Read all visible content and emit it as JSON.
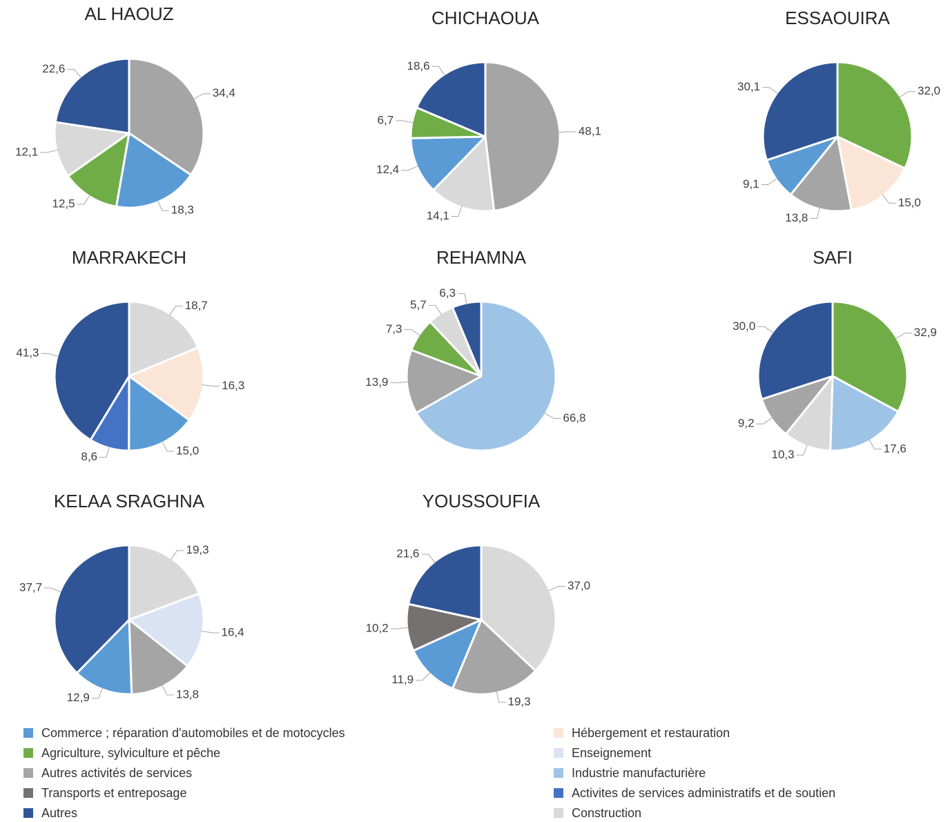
{
  "colors": {
    "Commerce ; réparation d'automobiles et de motocycles": "#5b9bd5",
    "Agriculture, sylviculture et pêche": "#70ad47",
    "Autres activités de services": "#a5a5a5",
    "Transports et entreposage": "#767171",
    "Autres": "#2f5597",
    "Hébergement et restauration": "#fbe5d6",
    "Enseignement": "#dae3f3",
    "Industrie manufacturière": "#9dc3e6",
    "Activites de services administratifs et de soutien": "#4472c4",
    "Construction": "#d9d9d9"
  },
  "legend": {
    "left": [
      "Commerce ; réparation d'automobiles et de motocycles",
      "Agriculture, sylviculture et pêche",
      "Autres activités de services",
      "Transports et entreposage",
      "Autres"
    ],
    "right": [
      "Hébergement et restauration",
      "Enseignement",
      "Industrie manufacturière",
      "Activites de services administratifs et de soutien",
      "Construction"
    ]
  },
  "chart_data": [
    {
      "type": "pie",
      "title": "AL HAOUZ",
      "slices": [
        {
          "category": "Autres activités de services",
          "value": 34.4,
          "label": "34,4"
        },
        {
          "category": "Commerce ; réparation d'automobiles et de motocycles",
          "value": 18.3,
          "label": "18,3"
        },
        {
          "category": "Agriculture, sylviculture et pêche",
          "value": 12.5,
          "label": "12,5"
        },
        {
          "category": "Construction",
          "value": 12.1,
          "label": "12,1"
        },
        {
          "category": "Autres",
          "value": 22.6,
          "label": "22,6"
        }
      ]
    },
    {
      "type": "pie",
      "title": "CHICHAOUA",
      "slices": [
        {
          "category": "Autres activités de services",
          "value": 48.1,
          "label": "48,1"
        },
        {
          "category": "Construction",
          "value": 14.1,
          "label": "14,1"
        },
        {
          "category": "Commerce ; réparation d'automobiles et de motocycles",
          "value": 12.4,
          "label": "12,4"
        },
        {
          "category": "Agriculture, sylviculture et pêche",
          "value": 6.7,
          "label": "6,7"
        },
        {
          "category": "Autres",
          "value": 18.6,
          "label": "18,6"
        }
      ]
    },
    {
      "type": "pie",
      "title": "ESSAOUIRA",
      "slices": [
        {
          "category": "Agriculture, sylviculture et pêche",
          "value": 32.0,
          "label": "32,0"
        },
        {
          "category": "Hébergement et restauration",
          "value": 15.0,
          "label": "15,0"
        },
        {
          "category": "Autres activités de services",
          "value": 13.8,
          "label": "13,8"
        },
        {
          "category": "Commerce ; réparation d'automobiles et de motocycles",
          "value": 9.1,
          "label": "9,1"
        },
        {
          "category": "Autres",
          "value": 30.1,
          "label": "30,1"
        }
      ]
    },
    {
      "type": "pie",
      "title": "MARRAKECH",
      "slices": [
        {
          "category": "Construction",
          "value": 18.7,
          "label": "18,7"
        },
        {
          "category": "Hébergement et restauration",
          "value": 16.3,
          "label": "16,3"
        },
        {
          "category": "Commerce ; réparation d'automobiles et de motocycles",
          "value": 15.0,
          "label": "15,0"
        },
        {
          "category": "Activites de services administratifs et de soutien",
          "value": 8.6,
          "label": "8,6"
        },
        {
          "category": "Autres",
          "value": 41.3,
          "label": "41,3"
        }
      ]
    },
    {
      "type": "pie",
      "title": "REHAMNA",
      "slices": [
        {
          "category": "Industrie manufacturière",
          "value": 66.8,
          "label": "66,8"
        },
        {
          "category": "Autres activités de services",
          "value": 13.9,
          "label": "13,9"
        },
        {
          "category": "Agriculture, sylviculture et pêche",
          "value": 7.3,
          "label": "7,3"
        },
        {
          "category": "Construction",
          "value": 5.7,
          "label": "5,7"
        },
        {
          "category": "Autres",
          "value": 6.3,
          "label": "6,3"
        }
      ]
    },
    {
      "type": "pie",
      "title": "SAFI",
      "slices": [
        {
          "category": "Agriculture, sylviculture et pêche",
          "value": 32.9,
          "label": "32,9"
        },
        {
          "category": "Industrie manufacturière",
          "value": 17.6,
          "label": "17,6"
        },
        {
          "category": "Construction",
          "value": 10.3,
          "label": "10,3"
        },
        {
          "category": "Autres activités de services",
          "value": 9.2,
          "label": "9,2"
        },
        {
          "category": "Autres",
          "value": 30.0,
          "label": "30,0"
        }
      ]
    },
    {
      "type": "pie",
      "title": "KELAA SRAGHNA",
      "slices": [
        {
          "category": "Construction",
          "value": 19.3,
          "label": "19,3"
        },
        {
          "category": "Enseignement",
          "value": 16.4,
          "label": "16,4"
        },
        {
          "category": "Autres activités de services",
          "value": 13.8,
          "label": "13,8"
        },
        {
          "category": "Commerce ; réparation d'automobiles et de motocycles",
          "value": 12.9,
          "label": "12,9"
        },
        {
          "category": "Autres",
          "value": 37.7,
          "label": "37,7"
        }
      ]
    },
    {
      "type": "pie",
      "title": "YOUSSOUFIA",
      "slices": [
        {
          "category": "Construction",
          "value": 37.0,
          "label": "37,0"
        },
        {
          "category": "Autres activités de services",
          "value": 19.3,
          "label": "19,3"
        },
        {
          "category": "Commerce ; réparation d'automobiles et de motocycles",
          "value": 11.9,
          "label": "11,9"
        },
        {
          "category": "Transports et entreposage",
          "value": 10.2,
          "label": "10,2"
        },
        {
          "category": "Autres",
          "value": 21.6,
          "label": "21,6"
        }
      ]
    }
  ]
}
